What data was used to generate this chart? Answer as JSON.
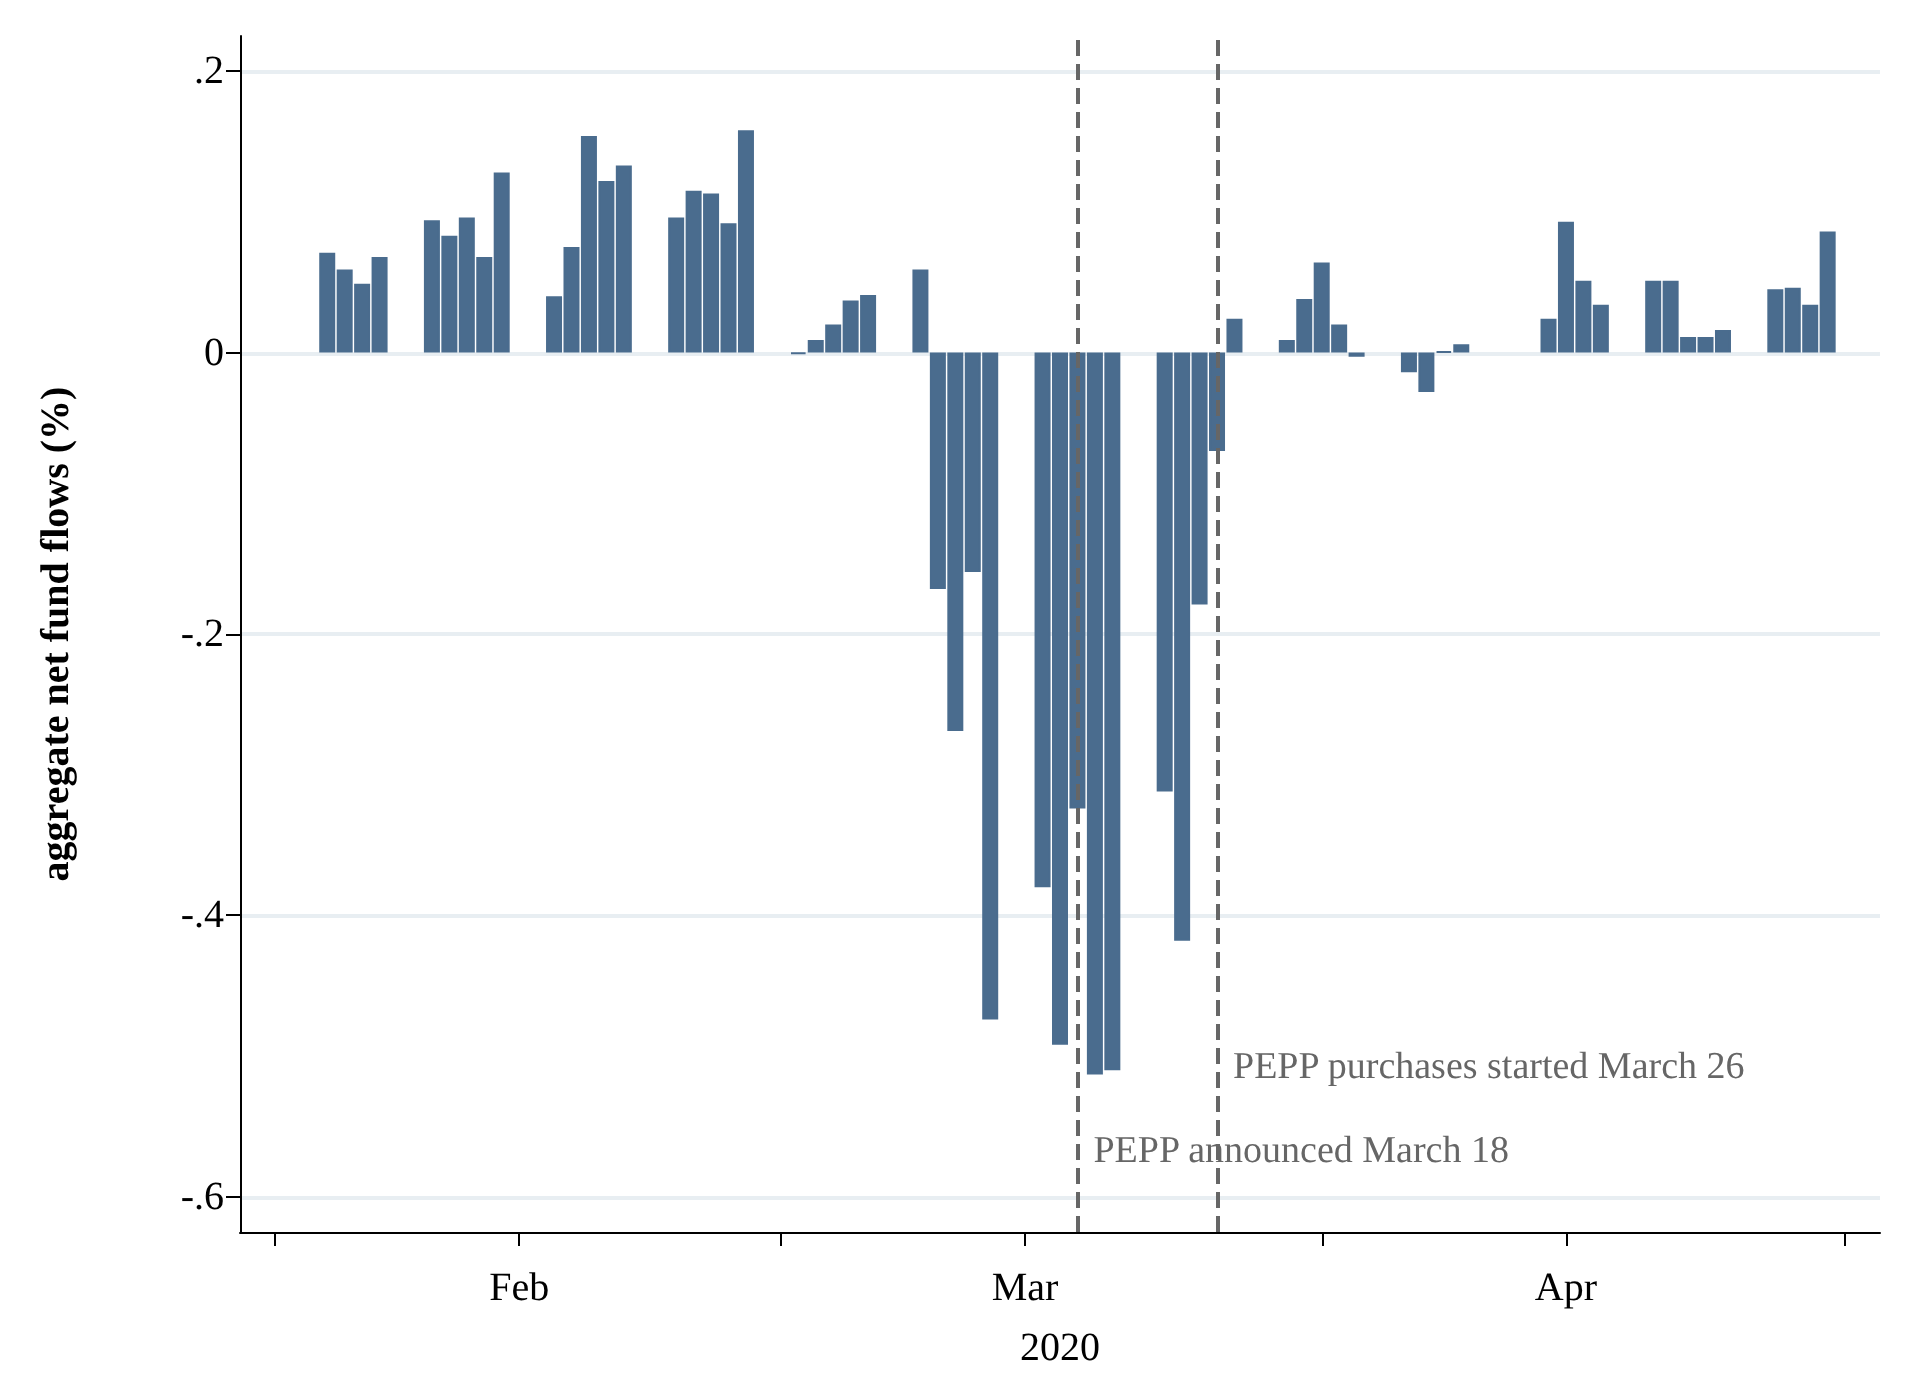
{
  "chart_data": {
    "type": "bar",
    "xlabel": "2020",
    "ylabel": "aggregate net fund flows (%)",
    "x": [
      "2020-02-04",
      "2020-02-05",
      "2020-02-06",
      "2020-02-07",
      "2020-02-10",
      "2020-02-11",
      "2020-02-12",
      "2020-02-13",
      "2020-02-14",
      "2020-02-17",
      "2020-02-18",
      "2020-02-19",
      "2020-02-20",
      "2020-02-21",
      "2020-02-24",
      "2020-02-25",
      "2020-02-26",
      "2020-02-27",
      "2020-02-28",
      "2020-03-02",
      "2020-03-03",
      "2020-03-04",
      "2020-03-05",
      "2020-03-06",
      "2020-03-09",
      "2020-03-10",
      "2020-03-11",
      "2020-03-12",
      "2020-03-13",
      "2020-03-16",
      "2020-03-17",
      "2020-03-18",
      "2020-03-19",
      "2020-03-20",
      "2020-03-23",
      "2020-03-24",
      "2020-03-25",
      "2020-03-26",
      "2020-03-27",
      "2020-03-30",
      "2020-03-31",
      "2020-04-01",
      "2020-04-02",
      "2020-04-03",
      "2020-04-06",
      "2020-04-07",
      "2020-04-08",
      "2020-04-09",
      "2020-04-14",
      "2020-04-15",
      "2020-04-16",
      "2020-04-17",
      "2020-04-20",
      "2020-04-21",
      "2020-04-22",
      "2020-04-23",
      "2020-04-24",
      "2020-04-27",
      "2020-04-28",
      "2020-04-29",
      "2020-04-30"
    ],
    "values": [
      0.071,
      0.059,
      0.049,
      0.068,
      0.094,
      0.083,
      0.096,
      0.068,
      0.128,
      0.04,
      0.075,
      0.154,
      0.122,
      0.133,
      0.096,
      0.115,
      0.113,
      0.092,
      0.158,
      -0.001,
      0.009,
      0.02,
      0.037,
      0.041,
      0.059,
      -0.168,
      -0.269,
      -0.156,
      -0.474,
      -0.38,
      -0.492,
      -0.324,
      -0.513,
      -0.51,
      -0.312,
      -0.418,
      -0.179,
      -0.07,
      0.024,
      0.009,
      0.038,
      0.064,
      0.02,
      -0.003,
      -0.014,
      -0.028,
      0.001,
      0.006,
      0.024,
      0.093,
      0.051,
      0.034,
      0.051,
      0.051,
      0.011,
      0.011,
      0.016,
      0.045,
      0.046,
      0.034,
      0.086
    ],
    "color": "#4a6c8e",
    "xlim": [
      "2020-01-30",
      "2020-05-03"
    ],
    "xticks": [
      {
        "value": "2020-02-01",
        "label": null
      },
      {
        "value": "2020-02-15",
        "label": "Feb"
      },
      {
        "value": "2020-03-01",
        "label": null
      },
      {
        "value": "2020-03-15",
        "label": "Mar"
      },
      {
        "value": "2020-04-01",
        "label": null
      },
      {
        "value": "2020-04-15",
        "label": "Apr"
      },
      {
        "value": "2020-05-01",
        "label": null
      }
    ],
    "ylim": [
      -0.625,
      0.225
    ],
    "yticks": [
      {
        "value": 0.2,
        "label": ".2"
      },
      0,
      {
        "value": -0.2,
        "label": "-.2"
      },
      {
        "value": -0.4,
        "label": "-.4"
      },
      {
        "value": -0.6,
        "label": "-.6"
      }
    ],
    "ref_lines": [
      {
        "axis": "x",
        "value": "2020-03-18",
        "label": "PEPP announced March 18",
        "color": "#666666",
        "line_style": "dashed"
      },
      {
        "axis": "x",
        "value": "2020-03-26",
        "label": "PEPP purchases started March 26",
        "color": "#666666",
        "line_style": "dashed"
      }
    ],
    "grid": "y"
  }
}
